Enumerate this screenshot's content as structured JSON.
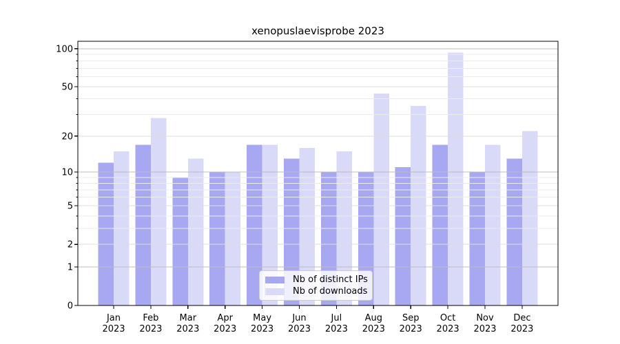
{
  "title": "xenopuslaevisprobe 2023",
  "chart_data": {
    "type": "bar",
    "title": "xenopuslaevisprobe 2023",
    "categories": [
      "Jan",
      "Feb",
      "Mar",
      "Apr",
      "May",
      "Jun",
      "Jul",
      "Aug",
      "Sep",
      "Oct",
      "Nov",
      "Dec"
    ],
    "x_tick_year": "2023",
    "series": [
      {
        "name": "Nb of distinct IPs",
        "color": "#a7a7f2",
        "values": [
          12,
          17,
          9,
          10,
          17,
          13,
          10,
          10,
          11,
          17,
          10,
          13
        ]
      },
      {
        "name": "Nb of downloads",
        "color": "#d9d9f8",
        "values": [
          15,
          28,
          13,
          10,
          17,
          16,
          15,
          44,
          35,
          93,
          17,
          22
        ]
      }
    ],
    "y_scale": "log10(value+1)",
    "yticks": [
      0,
      1,
      2,
      5,
      10,
      20,
      50,
      100
    ],
    "yticks_minor": [
      3,
      4,
      6,
      7,
      8,
      9,
      30,
      40,
      60,
      70,
      80,
      90
    ],
    "ylim": [
      0,
      105
    ],
    "grid": true,
    "legend_position": "bottom-center",
    "colors": {
      "grid_major": "#bcbcbc",
      "grid_labeled": "#dddddd",
      "grid_minor": "#ececec",
      "spine": "#000000"
    }
  }
}
